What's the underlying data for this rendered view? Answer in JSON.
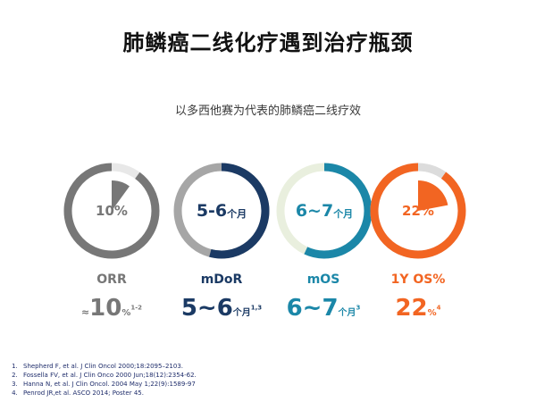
{
  "slide": {
    "title": "肺鳞癌二线化疗遇到治疗瓶颈",
    "subtitle": "以多西他赛为代表的肺鳞癌二线疗效"
  },
  "colors": {
    "orr": "#777777",
    "mdor": "#1b3a64",
    "mos": "#1b87a8",
    "os1y": "#f26522",
    "orr_track": "#e8e8e8",
    "mdor_track": "#a6a6a6",
    "mos_track": "#e9efde",
    "os1y_track": "#dcdcdc"
  },
  "metrics": [
    {
      "key": "orr",
      "ring_text": "10%",
      "ring_unit": "",
      "label": "ORR",
      "approx": "≈",
      "value": "10",
      "unit": "%",
      "sup": "1-2",
      "fraction": 0.1
    },
    {
      "key": "mdor",
      "ring_text": "5-6",
      "ring_unit": "个月",
      "label": "mDoR",
      "approx": "",
      "value": "5~6",
      "unit": "个月",
      "sup": "1,3"
    },
    {
      "key": "mos",
      "ring_text": "6~7",
      "ring_unit": "个月",
      "label": "mOS",
      "approx": "",
      "value": "6~7",
      "unit": "个月",
      "sup": "3"
    },
    {
      "key": "os1y",
      "ring_text": "22%",
      "ring_unit": "",
      "label": "1Y OS%",
      "approx": "",
      "value": "22",
      "unit": "%",
      "sup": "4",
      "fraction": 0.22
    }
  ],
  "references": [
    "Shepherd F, et al. J Clin Oncol 2000;18:2095–2103.",
    "Fossella FV, et al. J Clin Onco 2000 Jun;18(12):2354-62.",
    "Hanna N, et al. J Clin Oncol. 2004 May 1;22(9):1589-97",
    "Penrod JR,et al. ASCO 2014;  Poster 45."
  ]
}
